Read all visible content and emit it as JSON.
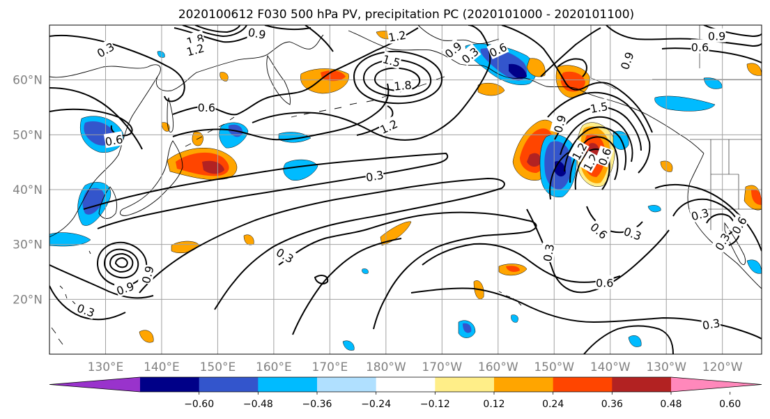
{
  "title": "2020100612 F030 500 hPa PV, precipitation PC (2020101000 - 2020101100)",
  "map": {
    "projection": "equirectangular",
    "lon_range": [
      120,
      247
    ],
    "lat_range": [
      10,
      70
    ],
    "lat_ticks": [
      {
        "lat": 60,
        "label": "60°N"
      },
      {
        "lat": 50,
        "label": "50°N"
      },
      {
        "lat": 40,
        "label": "40°N"
      },
      {
        "lat": 30,
        "label": "30°N"
      },
      {
        "lat": 20,
        "label": "20°N"
      }
    ],
    "lon_ticks": [
      {
        "lon": 130,
        "label": "130°E"
      },
      {
        "lon": 140,
        "label": "140°E"
      },
      {
        "lon": 150,
        "label": "150°E"
      },
      {
        "lon": 160,
        "label": "160°E"
      },
      {
        "lon": 170,
        "label": "170°E"
      },
      {
        "lon": 180,
        "label": "180°W"
      },
      {
        "lon": 190,
        "label": "170°W"
      },
      {
        "lon": 200,
        "label": "160°W"
      },
      {
        "lon": 210,
        "label": "150°W"
      },
      {
        "lon": 220,
        "label": "140°W"
      },
      {
        "lon": 230,
        "label": "130°W"
      },
      {
        "lon": 240,
        "label": "120°W"
      }
    ],
    "grid": true,
    "contour_labels": [
      {
        "text": "0.3",
        "lon": 130,
        "lat": 65.5,
        "rot": 30
      },
      {
        "text": "1.8",
        "lon": 146,
        "lat": 67.3,
        "rot": 15
      },
      {
        "text": "1.2",
        "lon": 146,
        "lat": 65.5,
        "rot": 15
      },
      {
        "text": "0.9",
        "lon": 157,
        "lat": 68.5,
        "rot": -10
      },
      {
        "text": "1.2",
        "lon": 182,
        "lat": 68.0,
        "rot": 10
      },
      {
        "text": "1.5",
        "lon": 181,
        "lat": 63.5,
        "rot": -15
      },
      {
        "text": "1.8",
        "lon": 183,
        "lat": 59.0,
        "rot": 5
      },
      {
        "text": "0.6",
        "lon": 148,
        "lat": 55.0,
        "rot": 0
      },
      {
        "text": "0.6",
        "lon": 131.5,
        "lat": 49.0,
        "rot": 10
      },
      {
        "text": "1.2",
        "lon": 180.5,
        "lat": 51.5,
        "rot": 25
      },
      {
        "text": "0.3",
        "lon": 178,
        "lat": 42.5,
        "rot": 10
      },
      {
        "text": "0.9",
        "lon": 192,
        "lat": 65.5,
        "rot": 40
      },
      {
        "text": "0.6",
        "lon": 200,
        "lat": 65.5,
        "rot": 25
      },
      {
        "text": "0.3",
        "lon": 195,
        "lat": 64.5,
        "rot": 40
      },
      {
        "text": "0.9",
        "lon": 223,
        "lat": 63.5,
        "rot": 70
      },
      {
        "text": "1.5",
        "lon": 218,
        "lat": 55.0,
        "rot": 10
      },
      {
        "text": "0.9",
        "lon": 211,
        "lat": 52.0,
        "rot": 75
      },
      {
        "text": "1.2",
        "lon": 214.5,
        "lat": 47.0,
        "rot": 60
      },
      {
        "text": "1.2",
        "lon": 216.5,
        "lat": 45.0,
        "rot": 60
      },
      {
        "text": "0.6",
        "lon": 219,
        "lat": 46.0,
        "rot": 70
      },
      {
        "text": "0.9",
        "lon": 239,
        "lat": 68.0,
        "rot": 0
      },
      {
        "text": "0.6",
        "lon": 236,
        "lat": 66.0,
        "rot": 0
      },
      {
        "text": "0.3",
        "lon": 236,
        "lat": 35.5,
        "rot": 15
      },
      {
        "text": "0.6",
        "lon": 243,
        "lat": 33.5,
        "rot": 60
      },
      {
        "text": "0.3",
        "lon": 240,
        "lat": 30.5,
        "rot": 60
      },
      {
        "text": "0.6",
        "lon": 218,
        "lat": 32.5,
        "rot": -40
      },
      {
        "text": "0.3",
        "lon": 224,
        "lat": 32.0,
        "rot": -20
      },
      {
        "text": "0.3",
        "lon": 209,
        "lat": 28.5,
        "rot": 80
      },
      {
        "text": "0.6",
        "lon": 219,
        "lat": 23.0,
        "rot": 0
      },
      {
        "text": "0.3",
        "lon": 238,
        "lat": 15.5,
        "rot": 10
      },
      {
        "text": "0.3",
        "lon": 162,
        "lat": 28.0,
        "rot": -30
      },
      {
        "text": "0.9",
        "lon": 137.5,
        "lat": 24.5,
        "rot": 75
      },
      {
        "text": "0.9",
        "lon": 133.5,
        "lat": 22.0,
        "rot": 20
      },
      {
        "text": "0.3",
        "lon": 126.5,
        "lat": 18.0,
        "rot": -20
      }
    ]
  },
  "colorbar": {
    "colors": [
      "#9933cc",
      "#000088",
      "#3355cc",
      "#00bbff",
      "#b0e0ff",
      "#ffffff",
      "#ffee88",
      "#ffa500",
      "#ff4500",
      "#b22222",
      "#ff88bb"
    ],
    "tick_labels": [
      "-0.60",
      "-0.48",
      "-0.36",
      "-0.24",
      "-0.12",
      "0.12",
      "0.24",
      "0.36",
      "0.48",
      "0.60"
    ],
    "extend": "both"
  }
}
